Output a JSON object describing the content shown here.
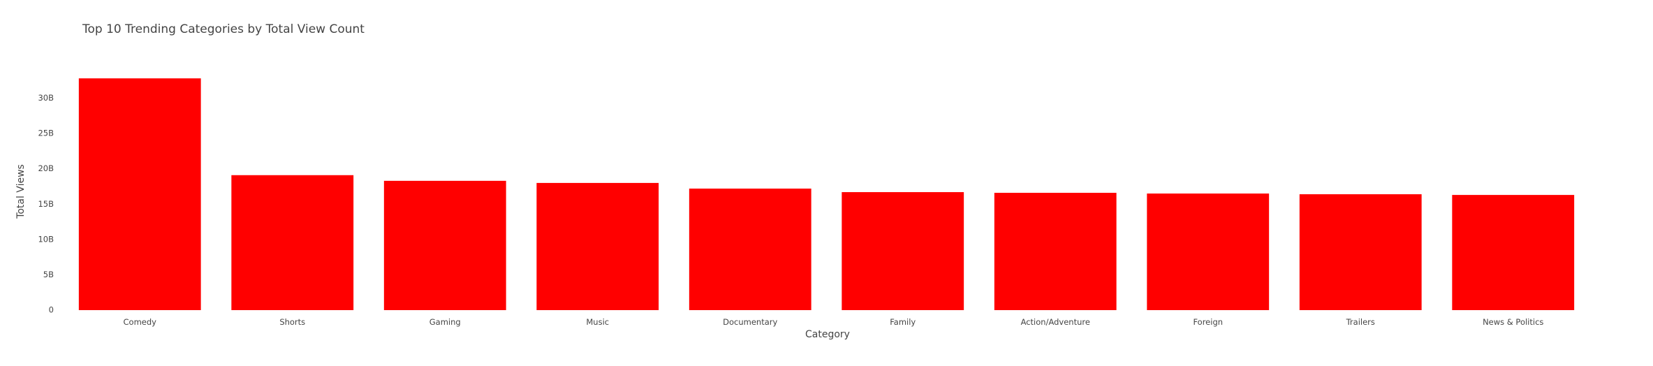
{
  "chart_data": {
    "type": "bar",
    "title": "Top 10 Trending Categories by Total View Count",
    "xlabel": "Category",
    "ylabel": "Total Views",
    "categories": [
      "Comedy",
      "Shorts",
      "Gaming",
      "Music",
      "Documentary",
      "Family",
      "Action/Adventure",
      "Foreign",
      "Trailers",
      "News & Politics"
    ],
    "values": [
      32.8,
      19.1,
      18.3,
      18.0,
      17.2,
      16.7,
      16.6,
      16.5,
      16.4,
      16.3
    ],
    "value_unit": "B",
    "ylim": [
      0,
      34.4
    ],
    "yticks": [
      0,
      5,
      10,
      15,
      20,
      25,
      30
    ],
    "ytick_labels": [
      "0",
      "5B",
      "10B",
      "15B",
      "20B",
      "25B",
      "30B"
    ],
    "grid": false,
    "bar_color": "#ff0000"
  }
}
